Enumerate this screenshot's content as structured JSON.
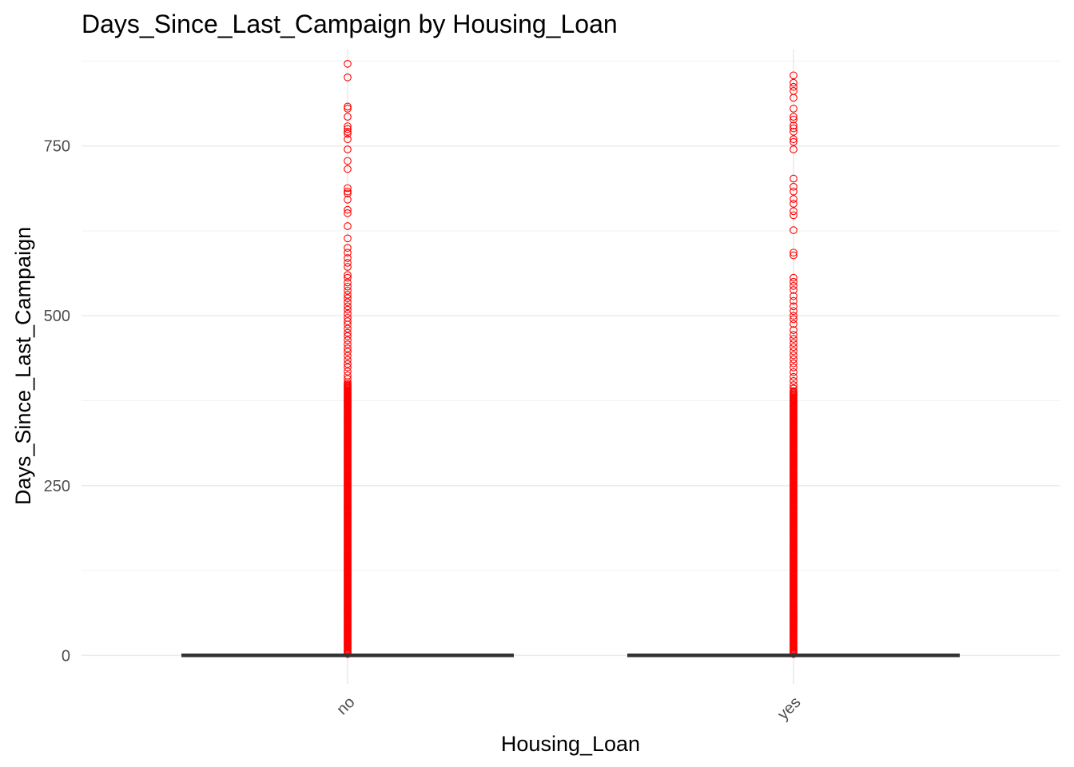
{
  "chart_data": {
    "type": "boxplot",
    "title": "Days_Since_Last_Campaign by Housing_Loan",
    "xlabel": "Housing_Loan",
    "ylabel": "Days_Since_Last_Campaign",
    "categories": [
      "no",
      "yes"
    ],
    "y_ticks": [
      0,
      250,
      500,
      750
    ],
    "ylim": [
      -42,
      892
    ],
    "grid": true,
    "outlier_color": "#ff0000",
    "box_color": "#333333",
    "series": [
      {
        "category": "no",
        "box": {
          "min": 0,
          "q1": 0,
          "median": 0,
          "q3": 0,
          "max": 0
        },
        "dense_outlier_range": [
          2,
          400
        ],
        "outliers": [
          871,
          851,
          808,
          805,
          793,
          779,
          775,
          771,
          768,
          760,
          745,
          728,
          716,
          688,
          683,
          680,
          671,
          656,
          651,
          632,
          614,
          600,
          593,
          585,
          578,
          572,
          560,
          556,
          549,
          543,
          537,
          531,
          526,
          520,
          514,
          509,
          503,
          497,
          492,
          487,
          481,
          475,
          470,
          464,
          458,
          452,
          447,
          441,
          435,
          429,
          424,
          418,
          412,
          407,
          402
        ]
      },
      {
        "category": "yes",
        "box": {
          "min": 0,
          "q1": 0,
          "median": 0,
          "q3": 0,
          "max": 0
        },
        "dense_outlier_range": [
          2,
          390
        ],
        "outliers": [
          854,
          843,
          837,
          831,
          821,
          805,
          793,
          789,
          780,
          776,
          771,
          760,
          756,
          745,
          702,
          690,
          683,
          672,
          665,
          654,
          648,
          626,
          593,
          589,
          556,
          550,
          544,
          538,
          529,
          522,
          514,
          507,
          500,
          495,
          488,
          479,
          472,
          466,
          460,
          454,
          448,
          442,
          436,
          430,
          424,
          417,
          410,
          404,
          398,
          393,
          60,
          55,
          50
        ]
      }
    ]
  }
}
